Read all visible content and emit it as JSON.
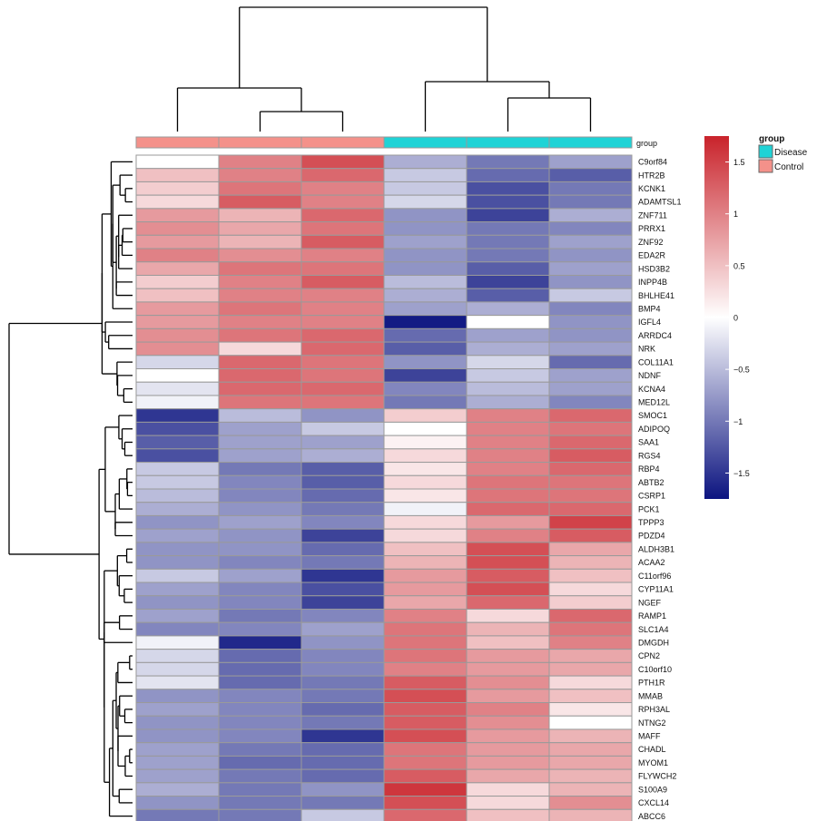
{
  "chart_data": {
    "type": "heatmap",
    "samples": [
      "",
      "",
      "",
      "",
      "",
      ""
    ],
    "annotation": {
      "name": "group",
      "values": [
        "Control",
        "Control",
        "Control",
        "Disease",
        "Disease",
        "Disease"
      ],
      "legend_title": "group",
      "legend": [
        {
          "label": "Disease",
          "color": "#1fd3d6"
        },
        {
          "label": "Control",
          "color": "#f4918a"
        }
      ]
    },
    "color_scale": {
      "min": -1.75,
      "max": 1.75,
      "low_color": "#0c1480",
      "mid_color": "#ffffff",
      "high_color": "#c9232b",
      "ticks": [
        1.5,
        1,
        0.5,
        0,
        -0.5,
        -1,
        -1.5
      ],
      "tick_labels": [
        "1.5",
        "1",
        "0.5",
        "0",
        "−0.5",
        "−1",
        "−1.5"
      ]
    },
    "genes": [
      "C9orf84",
      "HTR2B",
      "KCNK1",
      "ADAMTSL1",
      "ZNF711",
      "PRRX1",
      "ZNF92",
      "EDA2R",
      "HSD3B2",
      "INPP4B",
      "BHLHE41",
      "BMP4",
      "IGFL4",
      "ARRDC4",
      "NRK",
      "COL11A1",
      "NDNF",
      "KCNA4",
      "MED12L",
      "SMOC1",
      "ADIPOQ",
      "SAA1",
      "RGS4",
      "RBP4",
      "ABTB2",
      "CSRP1",
      "PCK1",
      "TPPP3",
      "PDZD4",
      "ALDH3B1",
      "ACAA2",
      "C11orf96",
      "CYP11A1",
      "NGEF",
      "RAMP1",
      "SLC1A4",
      "DMGDH",
      "CPN2",
      "C10orf10",
      "PTH1R",
      "MMAB",
      "RPH3AL",
      "NTNG2",
      "MAFF",
      "CHADL",
      "MYOM1",
      "FLYWCH2",
      "S100A9",
      "CXCL14",
      "ABCC6"
    ],
    "values": [
      [
        0.0,
        1.0,
        1.4,
        -0.6,
        -1.0,
        -0.7
      ],
      [
        0.5,
        1.0,
        1.2,
        -0.4,
        -1.1,
        -1.2
      ],
      [
        0.4,
        1.1,
        1.0,
        -0.4,
        -1.3,
        -1.0
      ],
      [
        0.3,
        1.3,
        1.0,
        -0.3,
        -1.3,
        -1.0
      ],
      [
        0.8,
        0.6,
        1.2,
        -0.8,
        -1.4,
        -0.6
      ],
      [
        0.9,
        0.7,
        1.1,
        -0.8,
        -1.0,
        -0.9
      ],
      [
        0.8,
        0.6,
        1.3,
        -0.7,
        -1.0,
        -0.7
      ],
      [
        1.0,
        0.9,
        1.0,
        -0.8,
        -1.0,
        -0.8
      ],
      [
        0.7,
        1.1,
        1.1,
        -0.8,
        -1.2,
        -0.7
      ],
      [
        0.4,
        1.0,
        1.3,
        -0.5,
        -1.4,
        -0.8
      ],
      [
        0.5,
        1.0,
        1.0,
        -0.6,
        -1.2,
        -0.4
      ],
      [
        0.8,
        1.1,
        1.0,
        -0.7,
        -0.6,
        -0.9
      ],
      [
        0.8,
        1.0,
        1.0,
        -1.7,
        0.0,
        -0.8
      ],
      [
        0.9,
        1.1,
        1.2,
        -1.1,
        -0.7,
        -0.8
      ],
      [
        0.9,
        0.3,
        1.2,
        -1.2,
        -0.6,
        -0.7
      ],
      [
        -0.3,
        1.2,
        1.1,
        -0.8,
        -0.3,
        -1.1
      ],
      [
        0.0,
        1.2,
        1.1,
        -1.4,
        -0.4,
        -0.7
      ],
      [
        -0.2,
        1.2,
        1.2,
        -0.9,
        -0.5,
        -0.7
      ],
      [
        -0.1,
        1.1,
        1.1,
        -1.0,
        -0.6,
        -0.9
      ],
      [
        -1.5,
        -0.5,
        -0.8,
        0.4,
        1.0,
        1.2
      ],
      [
        -1.3,
        -0.7,
        -0.4,
        0.0,
        1.0,
        1.1
      ],
      [
        -1.2,
        -0.7,
        -0.7,
        0.1,
        1.0,
        1.2
      ],
      [
        -1.3,
        -0.7,
        -0.6,
        0.3,
        1.0,
        1.3
      ],
      [
        -0.4,
        -1.0,
        -1.2,
        0.2,
        1.0,
        1.2
      ],
      [
        -0.4,
        -0.9,
        -1.2,
        0.3,
        1.1,
        1.1
      ],
      [
        -0.5,
        -0.9,
        -1.1,
        0.2,
        1.1,
        1.1
      ],
      [
        -0.6,
        -0.8,
        -1.0,
        -0.1,
        1.2,
        1.2
      ],
      [
        -0.8,
        -0.7,
        -0.9,
        0.3,
        0.8,
        1.5
      ],
      [
        -0.7,
        -0.8,
        -1.4,
        0.3,
        1.0,
        1.3
      ],
      [
        -0.8,
        -0.8,
        -1.1,
        0.5,
        1.4,
        0.7
      ],
      [
        -0.8,
        -0.9,
        -1.0,
        0.6,
        1.4,
        0.6
      ],
      [
        -0.4,
        -0.7,
        -1.5,
        0.8,
        1.3,
        0.5
      ],
      [
        -0.7,
        -0.9,
        -1.3,
        0.8,
        1.4,
        0.3
      ],
      [
        -0.8,
        -0.9,
        -1.4,
        0.7,
        1.2,
        0.4
      ],
      [
        -0.7,
        -1.0,
        -0.9,
        1.0,
        0.3,
        1.2
      ],
      [
        -0.9,
        -0.9,
        -0.7,
        1.1,
        0.6,
        1.1
      ],
      [
        -0.1,
        -1.6,
        -0.8,
        1.1,
        0.5,
        1.0
      ],
      [
        -0.3,
        -1.1,
        -0.9,
        1.1,
        0.8,
        0.7
      ],
      [
        -0.3,
        -1.1,
        -0.9,
        1.0,
        0.8,
        0.7
      ],
      [
        -0.2,
        -1.1,
        -1.0,
        1.3,
        0.9,
        0.3
      ],
      [
        -0.8,
        -0.9,
        -1.0,
        1.4,
        0.8,
        0.5
      ],
      [
        -0.7,
        -0.9,
        -1.1,
        1.3,
        1.0,
        0.2
      ],
      [
        -0.8,
        -0.9,
        -1.0,
        1.3,
        0.9,
        0.0
      ],
      [
        -0.8,
        -0.9,
        -1.5,
        1.4,
        0.8,
        0.6
      ],
      [
        -0.7,
        -1.0,
        -1.1,
        1.1,
        0.8,
        0.7
      ],
      [
        -0.7,
        -1.1,
        -1.1,
        1.1,
        0.8,
        0.7
      ],
      [
        -0.7,
        -1.0,
        -1.1,
        1.3,
        0.7,
        0.6
      ],
      [
        -0.6,
        -1.0,
        -0.8,
        1.6,
        0.3,
        0.6
      ],
      [
        -0.8,
        -1.0,
        -1.0,
        1.4,
        0.3,
        0.9
      ],
      [
        -1.0,
        -1.0,
        -0.4,
        1.2,
        0.5,
        0.6
      ]
    ],
    "cluster_rows": true,
    "cluster_cols": true,
    "cell_border_color": "#9a9a9a"
  }
}
